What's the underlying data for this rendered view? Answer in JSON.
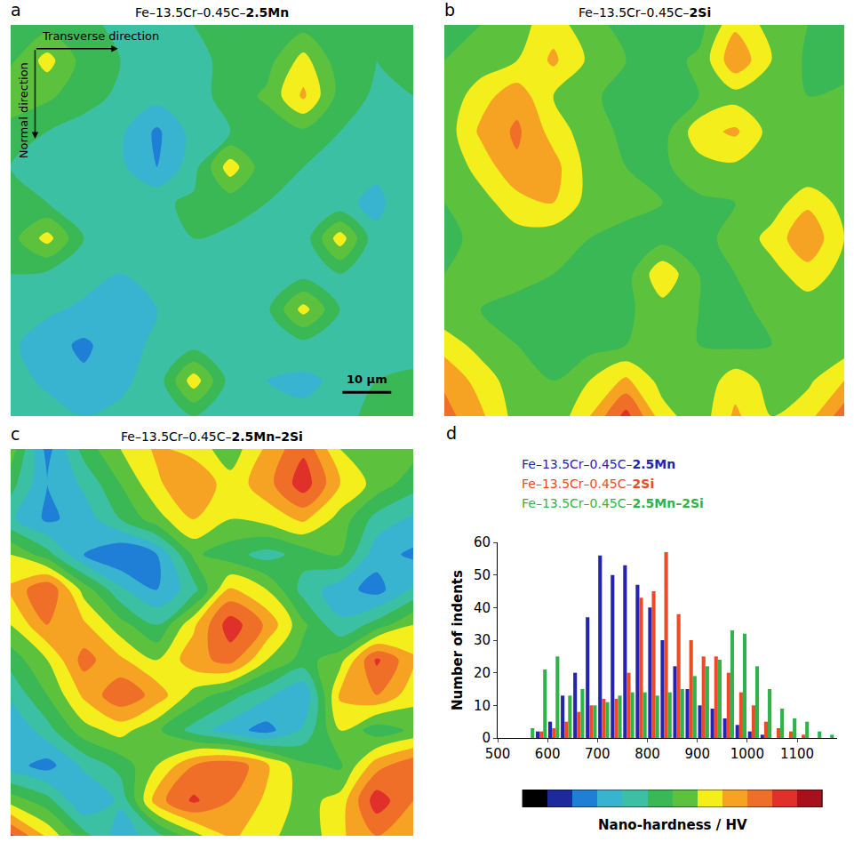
{
  "chart_data": [
    {
      "type": "contour",
      "label": "a",
      "title": "Fe–13.5Cr–0.45C–2.5Mn",
      "x": [
        0,
        7.5,
        15,
        22.5,
        30,
        37.5,
        45,
        52.5,
        60,
        67.5,
        75,
        82.5
      ],
      "y": [
        0,
        7.5,
        15,
        22.5,
        30,
        37.5,
        45,
        52.5,
        60,
        67.5,
        75,
        82.5
      ],
      "z": [
        [
          820,
          830,
          810,
          790,
          780,
          800,
          820,
          840,
          830,
          810,
          800,
          820
        ],
        [
          840,
          920,
          830,
          800,
          780,
          790,
          810,
          830,
          920,
          820,
          800,
          810
        ],
        [
          900,
          860,
          820,
          790,
          770,
          780,
          820,
          860,
          960,
          830,
          790,
          800
        ],
        [
          820,
          800,
          780,
          760,
          690,
          770,
          800,
          820,
          840,
          800,
          780,
          790
        ],
        [
          800,
          790,
          770,
          760,
          700,
          780,
          930,
          810,
          800,
          790,
          760,
          770
        ],
        [
          810,
          800,
          790,
          780,
          790,
          810,
          820,
          800,
          780,
          760,
          740,
          780
        ],
        [
          830,
          920,
          800,
          790,
          780,
          800,
          790,
          780,
          770,
          930,
          760,
          790
        ],
        [
          800,
          790,
          770,
          750,
          760,
          780,
          770,
          760,
          780,
          800,
          790,
          800
        ],
        [
          780,
          760,
          740,
          720,
          750,
          770,
          760,
          790,
          920,
          800,
          780,
          790
        ],
        [
          760,
          720,
          690,
          730,
          760,
          780,
          770,
          760,
          780,
          790,
          770,
          780
        ],
        [
          770,
          740,
          710,
          740,
          770,
          930,
          780,
          750,
          740,
          760,
          800,
          810
        ],
        [
          790,
          770,
          750,
          760,
          780,
          800,
          790,
          770,
          760,
          780,
          820,
          800
        ]
      ],
      "xlim": [
        0,
        82.5
      ],
      "ylim": [
        82.5,
        0
      ],
      "tick_labels": false,
      "annotations": [
        "Transverse direction",
        "Normal direction"
      ],
      "scale_bar": {
        "length": 10,
        "label": "10 µm"
      }
    },
    {
      "type": "contour",
      "label": "b",
      "title": "Fe–13.5Cr–0.45C–2Si",
      "x": [
        0,
        7.5,
        15,
        22.5,
        30,
        37.5,
        45,
        52.5,
        60,
        67.5,
        75,
        82.5
      ],
      "y": [
        0,
        7.5,
        15,
        22.5,
        30,
        37.5,
        45,
        52.5,
        60,
        67.5,
        75,
        82.5
      ],
      "z": [
        [
          830,
          850,
          880,
          930,
          860,
          840,
          820,
          830,
          940,
          880,
          850,
          840
        ],
        [
          850,
          870,
          900,
          960,
          890,
          850,
          830,
          860,
          990,
          900,
          840,
          830
        ],
        [
          860,
          930,
          980,
          900,
          860,
          830,
          820,
          850,
          880,
          870,
          850,
          860
        ],
        [
          870,
          960,
          1010,
          930,
          870,
          840,
          830,
          930,
          960,
          880,
          860,
          850
        ],
        [
          860,
          920,
          990,
          970,
          880,
          850,
          840,
          880,
          890,
          860,
          850,
          860
        ],
        [
          850,
          880,
          930,
          950,
          880,
          860,
          850,
          840,
          850,
          870,
          940,
          880
        ],
        [
          840,
          860,
          880,
          870,
          850,
          840,
          830,
          840,
          860,
          920,
          990,
          900
        ],
        [
          850,
          870,
          860,
          850,
          840,
          830,
          940,
          850,
          850,
          880,
          930,
          880
        ],
        [
          860,
          850,
          840,
          830,
          830,
          840,
          880,
          850,
          840,
          860,
          870,
          860
        ],
        [
          930,
          880,
          850,
          840,
          830,
          850,
          860,
          850,
          840,
          850,
          860,
          870
        ],
        [
          990,
          930,
          870,
          850,
          900,
          960,
          880,
          860,
          930,
          880,
          890,
          950
        ],
        [
          1020,
          960,
          880,
          860,
          950,
          1070,
          920,
          870,
          960,
          900,
          930,
          1030
        ]
      ],
      "xlim": [
        0,
        82.5
      ],
      "ylim": [
        82.5,
        0
      ],
      "tick_labels": false
    },
    {
      "type": "contour",
      "label": "c",
      "title": "Fe–13.5Cr–0.45C–2.5Mn–2Si",
      "x": [
        0,
        7.5,
        15,
        22.5,
        30,
        37.5,
        45,
        52.5,
        60,
        67.5,
        75,
        82.5
      ],
      "y": [
        0,
        7.5,
        15,
        22.5,
        30,
        37.5,
        45,
        52.5,
        60,
        67.5,
        75,
        82.5
      ],
      "z": [
        [
          880,
          680,
          820,
          900,
          960,
          930,
          870,
          960,
          1040,
          900,
          850,
          870
        ],
        [
          820,
          700,
          760,
          850,
          940,
          1000,
          920,
          980,
          1080,
          950,
          880,
          820
        ],
        [
          760,
          690,
          720,
          800,
          880,
          950,
          900,
          920,
          960,
          880,
          780,
          740
        ],
        [
          900,
          820,
          700,
          650,
          700,
          860,
          820,
          780,
          820,
          850,
          720,
          690
        ],
        [
          960,
          1050,
          880,
          760,
          700,
          780,
          960,
          900,
          780,
          720,
          680,
          760
        ],
        [
          900,
          1000,
          960,
          870,
          800,
          940,
          1080,
          990,
          860,
          760,
          820,
          900
        ],
        [
          820,
          900,
          1020,
          960,
          900,
          980,
          1020,
          900,
          830,
          880,
          1060,
          960
        ],
        [
          760,
          850,
          960,
          1040,
          980,
          880,
          820,
          760,
          700,
          960,
          1000,
          920
        ],
        [
          700,
          780,
          880,
          920,
          860,
          780,
          720,
          680,
          760,
          900,
          820,
          860
        ],
        [
          720,
          680,
          760,
          820,
          900,
          1000,
          1040,
          960,
          860,
          840,
          980,
          1040
        ],
        [
          880,
          820,
          700,
          760,
          980,
          1060,
          1000,
          940,
          880,
          920,
          1080,
          1000
        ],
        [
          1060,
          940,
          820,
          720,
          780,
          880,
          960,
          920,
          860,
          940,
          1000,
          960
        ]
      ],
      "xlim": [
        0,
        82.5
      ],
      "ylim": [
        82.5,
        0
      ],
      "tick_labels": false
    },
    {
      "type": "bar",
      "label": "d",
      "bins": [
        550,
        575,
        600,
        625,
        650,
        675,
        700,
        725,
        750,
        775,
        800,
        825,
        850,
        875,
        900,
        925,
        950,
        975,
        1000,
        1025,
        1050,
        1075,
        1100,
        1125,
        1150,
        1175
      ],
      "series": [
        {
          "name": "Fe–13.5Cr–0.45C–2.5Mn",
          "color": "#2424b0",
          "values": [
            0,
            2,
            5,
            13,
            20,
            37,
            56,
            50,
            53,
            47,
            40,
            30,
            22,
            15,
            10,
            9,
            6,
            4,
            2,
            1,
            0,
            0,
            0,
            0,
            0
          ]
        },
        {
          "name": "Fe–13.5Cr–0.45C–2Si",
          "color": "#ec4b26",
          "values": [
            0,
            2,
            3,
            5,
            8,
            10,
            12,
            12,
            20,
            43,
            45,
            57,
            38,
            30,
            25,
            25,
            20,
            14,
            10,
            5,
            3,
            2,
            1,
            0,
            0
          ]
        },
        {
          "name": "Fe–13.5Cr–0.45C–2.5Mn–2Si",
          "color": "#2fb34a",
          "values": [
            3,
            21,
            25,
            13,
            15,
            10,
            11,
            13,
            14,
            14,
            13,
            14,
            15,
            19,
            22,
            24,
            33,
            32,
            22,
            15,
            9,
            6,
            5,
            2,
            1
          ]
        }
      ],
      "xlim": [
        500,
        1180
      ],
      "xticks": [
        500,
        600,
        700,
        800,
        900,
        1000,
        1100
      ],
      "ylim": [
        0,
        60
      ],
      "yticks": [
        0,
        10,
        20,
        30,
        40,
        50,
        60
      ],
      "y_label": "Number of indents",
      "legend": "top",
      "grid": false,
      "colorbar": {
        "range": [
          550,
          1150
        ],
        "colors": [
          "#000000",
          "#1c2a9c",
          "#1f7fd6",
          "#38b4d0",
          "#3cc0a4",
          "#3bb856",
          "#5cc23e",
          "#f4ee1c",
          "#f6a324",
          "#f06f28",
          "#e0302a",
          "#a8101c"
        ],
        "label": "Nano-hardness / HV"
      }
    }
  ]
}
